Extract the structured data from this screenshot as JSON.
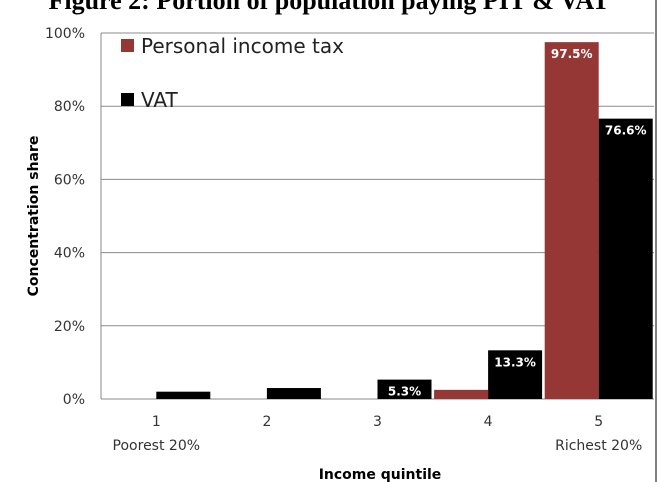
{
  "chart_data": {
    "type": "bar",
    "title": "Figure 2: Portion of population paying PIT & VAT",
    "xlabel": "Income quintile",
    "ylabel": "Concentration share",
    "categories": [
      "1",
      "2",
      "3",
      "4",
      "5"
    ],
    "category_sublabels": [
      "Poorest 20%",
      "",
      "",
      "",
      "Richest 20%"
    ],
    "ylim": [
      0,
      100
    ],
    "yticks": [
      "0%",
      "20%",
      "40%",
      "60%",
      "80%",
      "100%"
    ],
    "grid": true,
    "legend_position": "top-left",
    "series": [
      {
        "name": "Personal income tax",
        "color": "#953735",
        "values": [
          0,
          0,
          0,
          2.5,
          97.5
        ],
        "data_labels": [
          "",
          "",
          "",
          "",
          "97.5%"
        ]
      },
      {
        "name": "VAT",
        "color": "#000000",
        "values": [
          2.0,
          3.0,
          5.3,
          13.3,
          76.6
        ],
        "data_labels": [
          "",
          "",
          "5.3%",
          "13.3%",
          "76.6%"
        ]
      }
    ]
  }
}
